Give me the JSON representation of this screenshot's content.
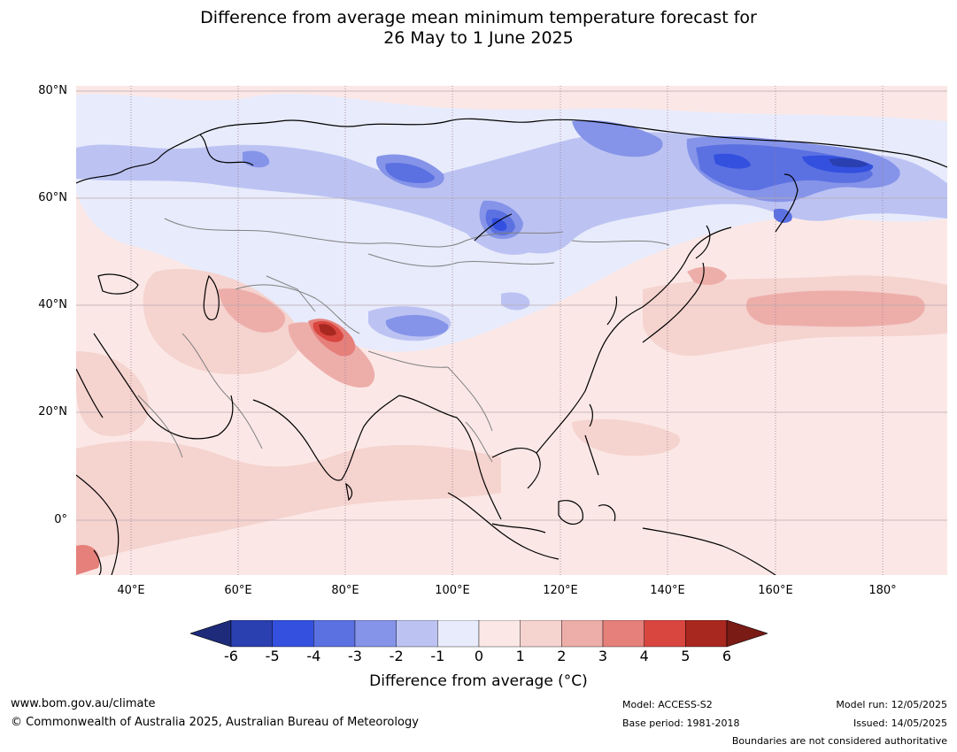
{
  "title_line1": "Difference from average mean minimum temperature forecast for",
  "title_line2": "26 May to 1 June 2025",
  "lat_labels": [
    "80°N",
    "60°N",
    "40°N",
    "20°N",
    "0°"
  ],
  "lon_labels": [
    "40°E",
    "60°E",
    "80°E",
    "100°E",
    "120°E",
    "140°E",
    "160°E",
    "180°"
  ],
  "colorbar": {
    "ticks": [
      "-6",
      "-5",
      "-4",
      "-3",
      "-2",
      "-1",
      "0",
      "1",
      "2",
      "3",
      "4",
      "5",
      "6"
    ],
    "colors": [
      "#1d2b7a",
      "#2a3fb0",
      "#3350df",
      "#5b71e2",
      "#8594e8",
      "#bcc3f3",
      "#e8ebfb",
      "#fbe8e6",
      "#f5d3cf",
      "#edaeaa",
      "#e5807b",
      "#d9453f",
      "#a8271f",
      "#7a1b16"
    ],
    "label": "Difference from average (°C)"
  },
  "footer": {
    "url": "www.bom.gov.au/climate",
    "copyright": "© Commonwealth of Australia 2025, Australian Bureau of Meteorology",
    "model": "Model: ACCESS-S2",
    "base_period": "Base period: 1981-2018",
    "model_run": "Model run: 12/05/2025",
    "issued": "Issued: 14/05/2025",
    "boundaries": "Boundaries are not considered authoritative"
  }
}
